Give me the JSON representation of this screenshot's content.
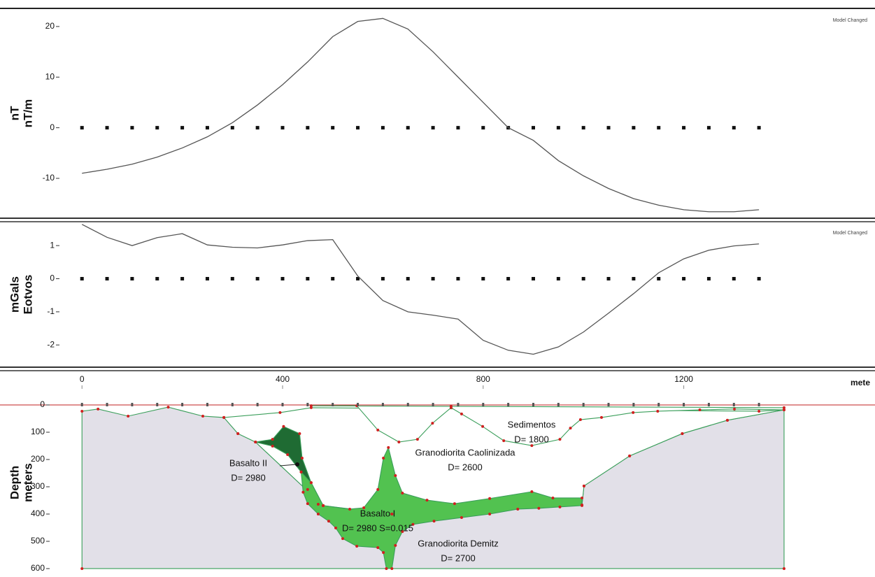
{
  "chart_data": [
    {
      "type": "line",
      "ylabel": [
        "nT",
        "nT/m"
      ],
      "status": "Model Changed",
      "xlim": [
        -24,
        1566
      ],
      "ylim": [
        -17.6,
        23.3
      ],
      "yticks": [
        20,
        10,
        0,
        -10
      ],
      "x": [
        0,
        50,
        100,
        150,
        200,
        250,
        300,
        350,
        400,
        450,
        500,
        550,
        600,
        650,
        700,
        750,
        800,
        850,
        900,
        950,
        1000,
        1050,
        1100,
        1150,
        1200,
        1250,
        1300,
        1350
      ],
      "series": [
        {
          "style": "markers",
          "color": "#111111",
          "values": [
            0,
            0,
            0,
            0,
            0,
            0,
            0,
            0,
            0,
            0,
            0,
            0,
            0,
            0,
            0,
            0,
            0,
            0,
            0,
            0,
            0,
            0,
            0,
            0,
            0,
            0,
            0,
            0
          ]
        },
        {
          "style": "line",
          "color": "#555555",
          "values": [
            -9,
            -8.2,
            -7.2,
            -5.8,
            -4,
            -1.8,
            1,
            4.5,
            8.5,
            13,
            18,
            21,
            21.6,
            19.5,
            15,
            10,
            5,
            0,
            -2.5,
            -6.5,
            -9.5,
            -12,
            -14,
            -15.3,
            -16.2,
            -16.6,
            -16.6,
            -16.2
          ]
        }
      ]
    },
    {
      "type": "line",
      "ylabel": [
        "mGals",
        "Eotvos"
      ],
      "status": "Model Changed",
      "xlim": [
        -24,
        1566
      ],
      "ylim": [
        -2.65,
        1.7
      ],
      "yticks": [
        1,
        0,
        -1,
        -2
      ],
      "x": [
        0,
        50,
        100,
        150,
        200,
        250,
        300,
        350,
        400,
        450,
        500,
        550,
        600,
        650,
        700,
        750,
        800,
        850,
        900,
        950,
        1000,
        1050,
        1100,
        1150,
        1200,
        1250,
        1300,
        1350
      ],
      "series": [
        {
          "style": "markers",
          "color": "#111111",
          "values": [
            0,
            0,
            0,
            0,
            0,
            0,
            0,
            0,
            0,
            0,
            0,
            0,
            0,
            0,
            0,
            0,
            0,
            0,
            0,
            0,
            0,
            0,
            0,
            0,
            0,
            0,
            0,
            0
          ]
        },
        {
          "style": "line",
          "color": "#555555",
          "values": [
            1.64,
            1.25,
            1,
            1.24,
            1.36,
            1.02,
            0.95,
            0.93,
            1.02,
            1.15,
            1.18,
            0.08,
            -0.66,
            -1,
            -1.1,
            -1.22,
            -1.86,
            -2.16,
            -2.28,
            -2.06,
            -1.61,
            -1.04,
            -0.45,
            0.18,
            0.6,
            0.86,
            0.99,
            1.05
          ]
        }
      ]
    },
    {
      "type": "model",
      "ylabel": [
        "Depth",
        "meters"
      ],
      "xlabel": "mete",
      "xlim": [
        -24,
        1566
      ],
      "xticks": [
        0,
        400,
        800,
        1200
      ],
      "ylim": [
        618,
        -100
      ],
      "yticks": [
        0,
        100,
        200,
        300,
        400,
        500,
        600
      ],
      "stations": [
        0,
        50,
        100,
        150,
        200,
        250,
        300,
        350,
        400,
        450,
        500,
        550,
        600,
        650,
        700,
        750,
        800,
        850,
        900,
        950,
        1000,
        1050,
        1100,
        1150,
        1200,
        1250,
        1300,
        1350
      ],
      "bodies": [
        {
          "name": "Granodiorita Demitz",
          "density": "D= 2700",
          "color": "#e2e0e8",
          "points": [
            [
              0,
              23
            ],
            [
              32,
              15
            ],
            [
              92,
              41
            ],
            [
              172,
              8
            ],
            [
              241,
              41
            ],
            [
              283,
              46
            ],
            [
              311,
              105
            ],
            [
              346,
              136
            ],
            [
              481,
              369
            ],
            [
              618,
              400
            ],
            [
              997,
              367
            ],
            [
              1001,
              297
            ],
            [
              1092,
              187
            ],
            [
              1197,
              105
            ],
            [
              1287,
              56
            ],
            [
              1400,
              18
            ],
            [
              1400,
              600
            ],
            [
              0,
              600
            ]
          ]
        },
        {
          "name": "Granodiorita Caolinizada",
          "density": "D= 2600",
          "color": "#ffffff",
          "points": [
            [
              283,
              46
            ],
            [
              311,
              105
            ],
            [
              346,
              136
            ],
            [
              481,
              369
            ],
            [
              618,
              400
            ],
            [
              997,
              367
            ],
            [
              1001,
              297
            ],
            [
              1092,
              187
            ],
            [
              1197,
              105
            ],
            [
              1287,
              56
            ],
            [
              1400,
              18
            ],
            [
              1350,
              23
            ],
            [
              457,
              10
            ],
            [
              395,
              28
            ]
          ]
        },
        {
          "name": "Sedimentos",
          "density": "D= 1800",
          "color": "#ffffff",
          "points": [
            [
              457,
              3
            ],
            [
              548,
              3
            ],
            [
              590,
              92
            ],
            [
              632,
              136
            ],
            [
              669,
              126
            ],
            [
              699,
              67
            ],
            [
              736,
              10
            ],
            [
              757,
              33
            ],
            [
              799,
              79
            ],
            [
              841,
              131
            ],
            [
              897,
              149
            ],
            [
              953,
              126
            ],
            [
              974,
              85
            ],
            [
              994,
              54
            ],
            [
              1036,
              46
            ],
            [
              1099,
              28
            ],
            [
              1148,
              23
            ],
            [
              1232,
              18
            ],
            [
              1301,
              15
            ],
            [
              1400,
              18
            ],
            [
              1400,
              10
            ],
            [
              736,
              5
            ]
          ]
        },
        {
          "name": "Basalto II",
          "density": "D= 2980",
          "color": "#1f6b33",
          "points": [
            [
              346,
              136
            ],
            [
              380,
              126
            ],
            [
              402,
              79
            ],
            [
              434,
              105
            ],
            [
              439,
              195
            ],
            [
              457,
              285
            ],
            [
              481,
              369
            ],
            [
              471,
              364
            ],
            [
              450,
              310
            ],
            [
              437,
              246
            ],
            [
              410,
              182
            ],
            [
              380,
              151
            ]
          ]
        },
        {
          "name": "Basalto I",
          "density": "D= 2980 S=0.015",
          "color": "#52c250",
          "points": [
            [
              437,
              246
            ],
            [
              457,
              285
            ],
            [
              481,
              369
            ],
            [
              534,
              382
            ],
            [
              562,
              377
            ],
            [
              590,
              310
            ],
            [
              601,
              195
            ],
            [
              611,
              156
            ],
            [
              625,
              259
            ],
            [
              639,
              323
            ],
            [
              688,
              349
            ],
            [
              743,
              362
            ],
            [
              813,
              343
            ],
            [
              897,
              318
            ],
            [
              939,
              341
            ],
            [
              997,
              341
            ],
            [
              997,
              369
            ],
            [
              953,
              374
            ],
            [
              911,
              379
            ],
            [
              869,
              382
            ],
            [
              813,
              400
            ],
            [
              757,
              413
            ],
            [
              702,
              426
            ],
            [
              660,
              438
            ],
            [
              639,
              464
            ],
            [
              625,
              515
            ],
            [
              618,
              600
            ],
            [
              607,
              600
            ],
            [
              601,
              541
            ],
            [
              590,
              523
            ],
            [
              548,
              518
            ],
            [
              520,
              490
            ],
            [
              506,
              451
            ],
            [
              492,
              426
            ],
            [
              471,
              400
            ],
            [
              450,
              362
            ],
            [
              441,
              320
            ]
          ]
        }
      ]
    }
  ]
}
